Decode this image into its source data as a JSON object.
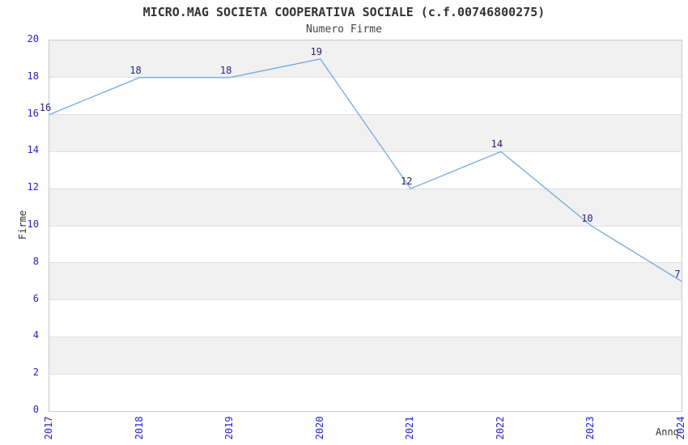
{
  "header": {
    "title": "MICRO.MAG SOCIETA COOPERATIVA SOCIALE (c.f.00746800275)",
    "subtitle": "Numero Firme"
  },
  "chart_data": {
    "type": "line",
    "title": "MICRO.MAG SOCIETA COOPERATIVA SOCIALE (c.f.00746800275)",
    "subtitle": "Numero Firme",
    "categories": [
      "2017",
      "2018",
      "2019",
      "2020",
      "2021",
      "2022",
      "2023",
      "2024"
    ],
    "series": [
      {
        "name": "Numero Firme",
        "values": [
          16,
          18,
          18,
          19,
          12,
          14,
          10,
          7
        ]
      }
    ],
    "data_labels_shown": true,
    "xlabel": "Anno",
    "ylabel": "Firme",
    "ylim": [
      0,
      20
    ],
    "ytick_step": 2,
    "grid": "horizontal alternating bands, gridline at every even tick",
    "legend_position": "none",
    "colors": {
      "line": "#74a9e0",
      "tick_label": "#2222cc",
      "data_label": "#26267a",
      "band": "#f1f1f1",
      "grid_line": "#e0e0e0",
      "spine": "#c8c8c8",
      "title_text": "#333333",
      "background": "#ffffff"
    }
  }
}
